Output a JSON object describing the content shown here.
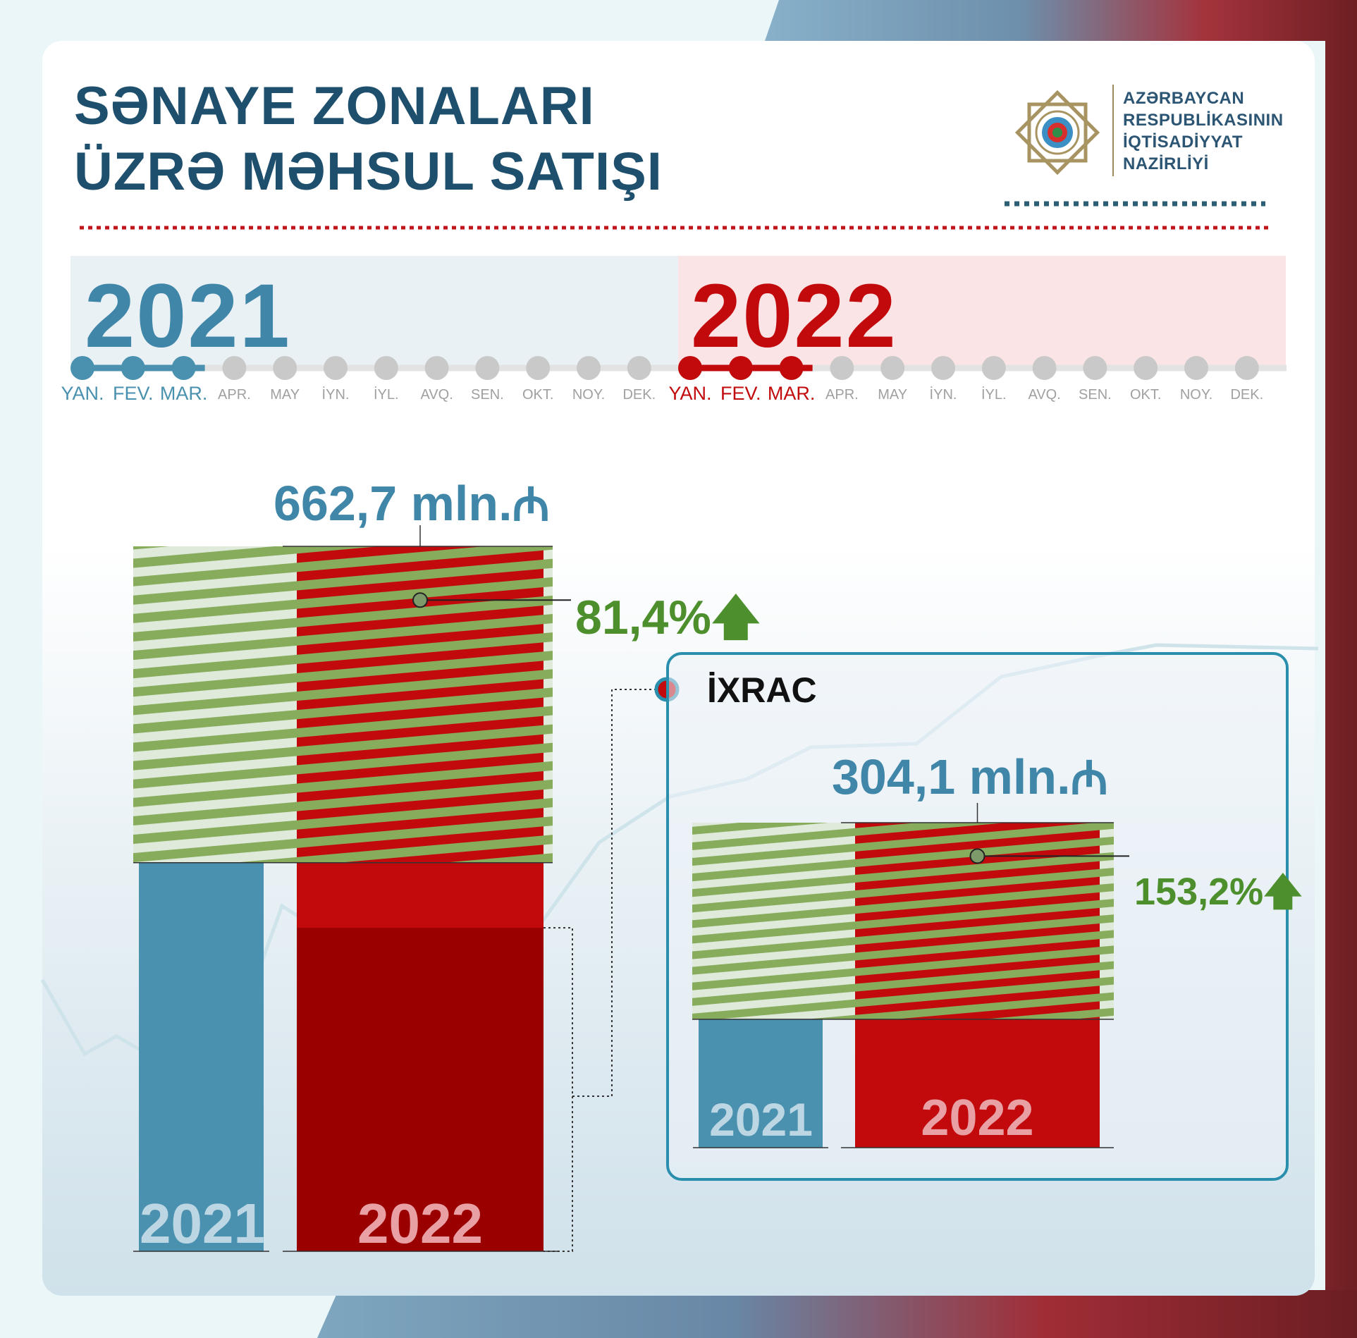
{
  "header": {
    "title_line1": "SƏNAYE ZONALARI",
    "title_line2": "ÜZRƏ MƏHSUL SATIŞI",
    "org_line1": "AZƏRBAYCAN",
    "org_line2": "RESPUBLİKASININ",
    "org_line3": "İQTİSADİYYAT",
    "org_line4": "NAZİRLİYİ"
  },
  "timeline": {
    "year_a": "2021",
    "year_b": "2022",
    "months": [
      "YAN.",
      "FEV.",
      "MAR.",
      "APR.",
      "MAY",
      "İYN.",
      "İYL.",
      "AVQ.",
      "SEN.",
      "OKT.",
      "NOY.",
      "DEK."
    ],
    "active_months_count": 3
  },
  "colors": {
    "blue": "#4a91b0",
    "red": "#c20a0d",
    "dark_red": "#9b0000",
    "green": "#4d8f2c",
    "title": "#1e4f6c"
  },
  "chart_data": [
    {
      "type": "bar",
      "title": "",
      "categories": [
        "2021",
        "2022"
      ],
      "values": [
        365.3,
        662.7
      ],
      "value_label": "662,7 mln.",
      "growth_label": "81,4%",
      "growth_pct": 81.4,
      "export_part_2022": 304.1
    },
    {
      "type": "bar",
      "title": "İXRAC",
      "categories": [
        "2021",
        "2022"
      ],
      "values": [
        120.1,
        304.1
      ],
      "value_label": "304,1 mln.",
      "growth_label": "153,2%",
      "growth_pct": 153.2
    }
  ]
}
